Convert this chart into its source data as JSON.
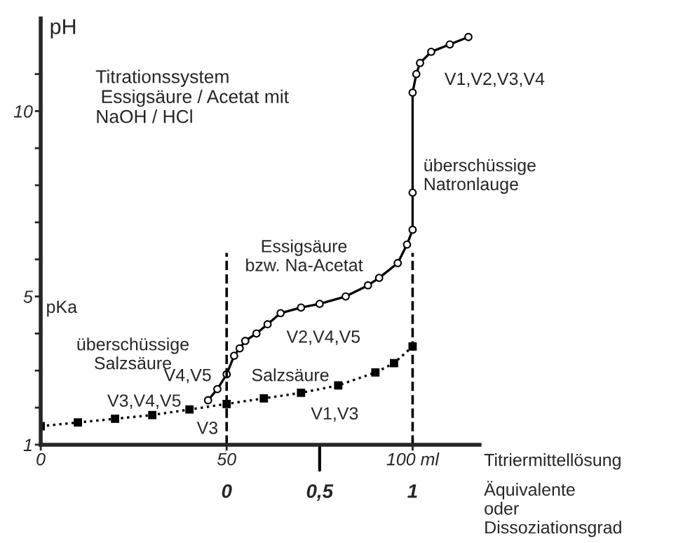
{
  "chart_data": {
    "type": "line",
    "ylabel": "pH",
    "xlabel": "Titriermittellösung",
    "x2label": "Äquivalente\noder\nDissoziationsgrad",
    "annotations": [
      "Titrationssystem\n Essigsäure / Acetat mit\nNaOH / HCl",
      "V1,V2,V3,V4",
      "überschüssige\nNatronlauge",
      "Essigsäure\nbzw. Na-Acetat",
      "V2,V4,V5",
      "pKa",
      "überschüssige\nSalzsäure",
      "V4,V5",
      "Salzsäure",
      "V3,V4,V5",
      "V3",
      "V1,V3"
    ],
    "series": [
      {
        "color": "#000000",
        "marker": "square",
        "line_style": "dotted",
        "x": [
          0,
          10,
          20,
          30,
          40,
          50,
          60,
          70,
          80,
          90,
          95,
          100
        ],
        "values": [
          1.5,
          1.6,
          1.7,
          1.8,
          1.95,
          2.1,
          2.25,
          2.4,
          2.6,
          2.95,
          3.2,
          3.65
        ]
      },
      {
        "color": "#000000",
        "marker": "circle",
        "line_style": "solid",
        "x": [
          45,
          47.5,
          50,
          52,
          53.5,
          55,
          58,
          61,
          64.5,
          70,
          75,
          82,
          88,
          91,
          96,
          98.5,
          100,
          100,
          100,
          101,
          102,
          105,
          110,
          115
        ],
        "values": [
          2.2,
          2.5,
          2.9,
          3.4,
          3.6,
          3.8,
          4.0,
          4.25,
          4.55,
          4.7,
          4.8,
          5.0,
          5.3,
          5.5,
          5.9,
          6.4,
          6.8,
          7.8,
          10.5,
          11.0,
          11.3,
          11.6,
          11.8,
          12.0
        ]
      }
    ],
    "ref_lines": [
      {
        "axis": "x",
        "value": 50,
        "line_style": "dashed"
      },
      {
        "axis": "x",
        "value": 100,
        "line_style": "dashed"
      }
    ],
    "xlim": [
      0,
      118
    ],
    "xticks": [
      0,
      50,
      {
        "value": 100,
        "label": "100 ml"
      }
    ],
    "x2lim": [
      -1,
      1.36
    ],
    "x2ticks": [
      0,
      {
        "value": 0.5,
        "label": "0,5"
      },
      1
    ],
    "ylim": [
      1,
      12.5
    ],
    "yticks": [
      1,
      {
        "value": 2,
        "label": null
      },
      {
        "value": 3,
        "label": null
      },
      {
        "value": 4,
        "label": null
      },
      5,
      {
        "value": 6,
        "label": null
      },
      {
        "value": 7,
        "label": null
      },
      {
        "value": 8,
        "label": null
      },
      {
        "value": 9,
        "label": null
      },
      10,
      {
        "value": 11,
        "label": null
      }
    ],
    "grid": false
  }
}
